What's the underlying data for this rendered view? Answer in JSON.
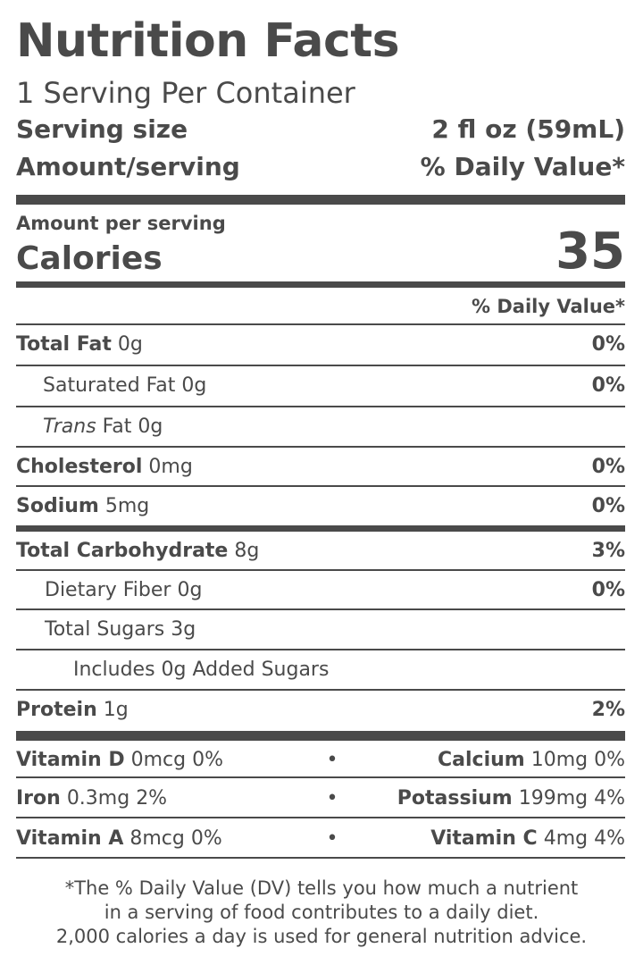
{
  "header": {
    "title": "Nutrition Facts",
    "servings": "1 Serving Per Container",
    "serving_size_label": "Serving size",
    "serving_size_value": "2 fl oz (59mL)",
    "amount_label": "Amount/serving",
    "dv_label": "% Daily Value*"
  },
  "calories": {
    "amount_per_serving": "Amount per serving",
    "label": "Calories",
    "value": "35"
  },
  "dv_header": "% Daily Value*",
  "nutrients": [
    {
      "name": "Total Fat",
      "amount": "0g",
      "dv": "0%"
    },
    {
      "name": "Saturated Fat",
      "amount": "0g",
      "dv": "0%"
    },
    {
      "name_italic": "Trans",
      "name": "Fat",
      "amount": "0g",
      "dv": ""
    },
    {
      "name": "Cholesterol",
      "amount": "0mg",
      "dv": "0%"
    },
    {
      "name": "Sodium",
      "amount": "5mg",
      "dv": "0%"
    },
    {
      "name": "Total Carbohydrate",
      "amount": "8g",
      "dv": "3%"
    },
    {
      "name": "Dietary Fiber",
      "amount": "0g",
      "dv": "0%"
    },
    {
      "name": "Total Sugars",
      "amount": "3g",
      "dv": ""
    },
    {
      "name": "Includes 0g Added Sugars",
      "amount": "",
      "dv": ""
    },
    {
      "name": "Protein",
      "amount": "1g",
      "dv": "2%"
    }
  ],
  "vitamins": [
    {
      "left_name": "Vitamin D",
      "left_value": "0mcg 0%",
      "right_name": "Calcium",
      "right_value": "10mg 0%"
    },
    {
      "left_name": "Iron",
      "left_value": "0.3mg 2%",
      "right_name": "Potassium",
      "right_value": "199mg 4%"
    },
    {
      "left_name": "Vitamin A",
      "left_value": "8mcg 0%",
      "right_name": "Vitamin C",
      "right_value": "4mg 4%"
    }
  ],
  "bullet": "•",
  "footnote": [
    "*The % Daily Value (DV) tells you how much a nutrient",
    "in a serving of food contributes to a daily diet.",
    "2,000 calories a day is used for general nutrition advice."
  ]
}
